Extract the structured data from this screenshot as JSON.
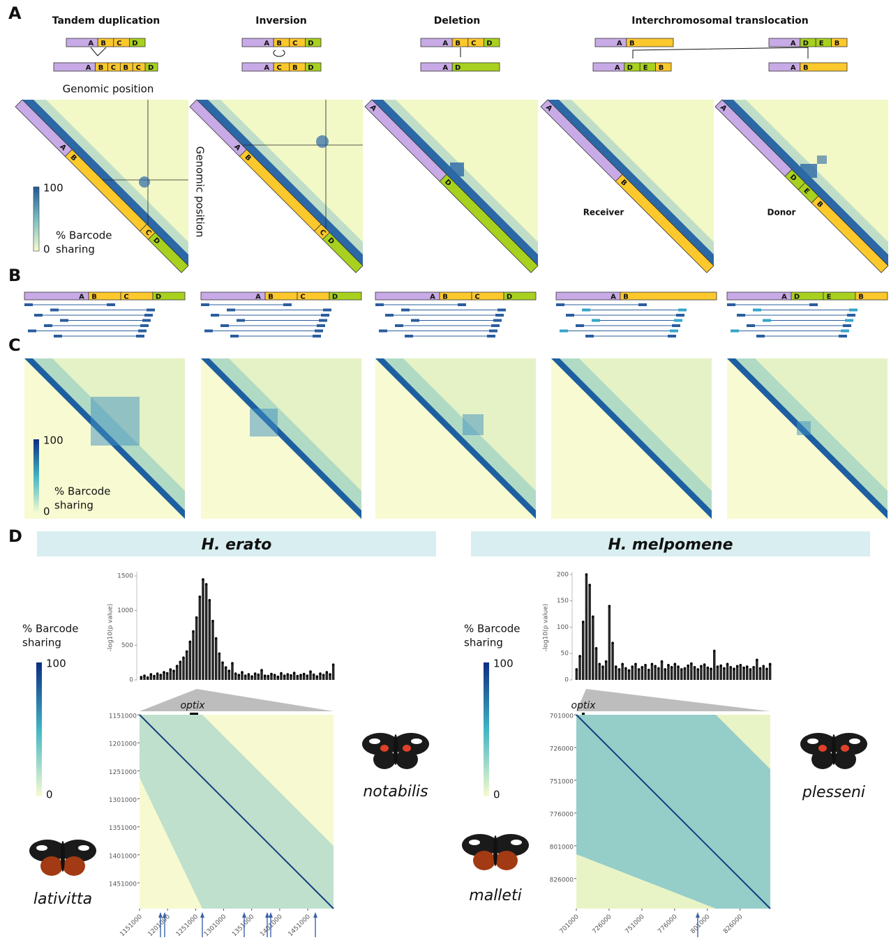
{
  "panel_labels": [
    "A",
    "B",
    "C",
    "D"
  ],
  "panel_a": {
    "titles": [
      "Tandem duplication",
      "Inversion",
      "Deletion",
      "Interchromosomal translocation"
    ],
    "x_axis_label": "Genomic position",
    "y_axis_label": "Genomic position",
    "diagrams": [
      {
        "before": [
          "A",
          "B",
          "C",
          "D"
        ],
        "after": [
          "A",
          "B",
          "C",
          "B",
          "C",
          "D"
        ]
      },
      {
        "before": [
          "A",
          "B",
          "C",
          "D"
        ],
        "after": [
          "A",
          "C",
          "B",
          "D"
        ]
      },
      {
        "before": [
          "A",
          "B",
          "C",
          "D"
        ],
        "after": [
          "A",
          "D"
        ]
      },
      {
        "receiver_before": [
          "A",
          "B"
        ],
        "receiver_after": [
          "A",
          "D",
          "E",
          "B"
        ],
        "donor_before": [
          "A",
          "D",
          "E",
          "B"
        ],
        "donor_after": [
          "A",
          "B"
        ]
      }
    ],
    "heatmap_labels": [
      [
        "A",
        "B",
        "C",
        "D"
      ],
      [
        "A",
        "B",
        "C",
        "D"
      ],
      [
        "A",
        "D"
      ],
      [
        "A",
        "B"
      ],
      [
        "A",
        "D",
        "E",
        "B"
      ]
    ],
    "annotations": [
      "Receiver",
      "Donor"
    ],
    "legend": {
      "title": [
        "% Barcode",
        "sharing"
      ],
      "max": 100,
      "min": 0
    }
  },
  "panel_b": {
    "bar_labels": [
      [
        "A",
        "B",
        "C",
        "D"
      ],
      [
        "A",
        "B",
        "C",
        "D"
      ],
      [
        "A",
        "B",
        "C",
        "D"
      ],
      [
        "A",
        "B"
      ],
      [
        "A",
        "D",
        "E",
        "B"
      ]
    ]
  },
  "panel_c": {
    "legend": {
      "title": [
        "% Barcode",
        "sharing"
      ],
      "max": 100,
      "min": 0
    }
  },
  "panel_d": {
    "legend": {
      "title": [
        "% Barcode",
        "sharing"
      ],
      "max": 100,
      "min": 0
    },
    "species": [
      {
        "name": "H. erato",
        "gene": "optix",
        "subspecies": [
          "notabilis",
          "lativitta"
        ],
        "manhattan": {
          "type": "scatter",
          "ylabel": "-log10(p value)",
          "ylim": [
            0,
            1560
          ],
          "yticks": [
            0,
            500,
            1000,
            1500
          ],
          "values": [
            40,
            60,
            35,
            80,
            55,
            90,
            70,
            110,
            95,
            150,
            130,
            200,
            260,
            320,
            410,
            550,
            700,
            900,
            1200,
            1450,
            1380,
            1150,
            850,
            600,
            380,
            250,
            180,
            130,
            240,
            90,
            70,
            110,
            60,
            80,
            50,
            90,
            75,
            140,
            60,
            55,
            85,
            70,
            45,
            95,
            60,
            80,
            65,
            100,
            55,
            70,
            85,
            60,
            120,
            75,
            50,
            90,
            70,
            110,
            80,
            220
          ]
        },
        "heatmap": {
          "lim": [
            1151000,
            1497000
          ],
          "ticks": [
            1151000,
            1201000,
            1251000,
            1301000,
            1351000,
            1401000,
            1451000
          ]
        }
      },
      {
        "name": "H. melpomene",
        "gene": "optix",
        "subspecies": [
          "plesseni",
          "malleti"
        ],
        "manhattan": {
          "type": "scatter",
          "ylabel": "-log10(p value)",
          "ylim": [
            0,
            205
          ],
          "yticks": [
            0,
            50,
            100,
            150,
            200
          ],
          "values": [
            20,
            45,
            110,
            200,
            180,
            120,
            60,
            30,
            25,
            35,
            140,
            70,
            25,
            20,
            30,
            22,
            18,
            25,
            30,
            20,
            24,
            28,
            19,
            30,
            26,
            22,
            35,
            20,
            28,
            24,
            30,
            25,
            20,
            22,
            27,
            31,
            24,
            20,
            26,
            29,
            23,
            21,
            55,
            25,
            27,
            22,
            30,
            24,
            21,
            26,
            28,
            23,
            25,
            20,
            24,
            38,
            22,
            26,
            21,
            30
          ]
        },
        "heatmap": {
          "lim": [
            701000,
            849000
          ],
          "ticks": [
            701000,
            726000,
            751000,
            776000,
            801000,
            826000
          ]
        }
      }
    ]
  }
}
